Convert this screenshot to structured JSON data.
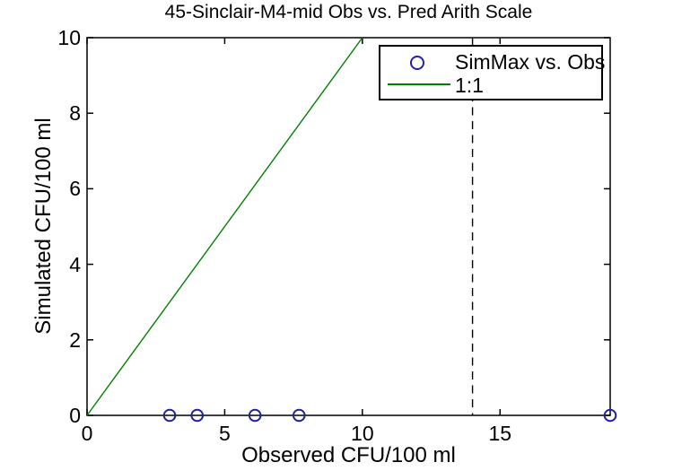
{
  "chart_data": {
    "type": "scatter",
    "title": "45-Sinclair-M4-mid Obs vs. Pred Arith Scale",
    "xlabel": "Observed CFU/100 ml",
    "ylabel": "Simulated CFU/100 ml",
    "xlim": [
      0,
      19
    ],
    "ylim": [
      0,
      10
    ],
    "xticks": [
      0,
      5,
      10,
      15
    ],
    "xtick_labels": [
      "0",
      "5",
      "10",
      "15"
    ],
    "yticks": [
      0,
      2,
      4,
      6,
      8,
      10
    ],
    "ytick_labels": [
      "0",
      "2",
      "4",
      "6",
      "8",
      "10"
    ],
    "grid": false,
    "frame": true,
    "legend_position": "upper-right",
    "series": [
      {
        "name": "SimMax vs. Obs",
        "type": "scatter",
        "marker": "circle",
        "color": "#2121a3",
        "points": [
          [
            3.0,
            0
          ],
          [
            4.0,
            0
          ],
          [
            6.1,
            0
          ],
          [
            7.7,
            0
          ],
          [
            19.0,
            0
          ]
        ]
      },
      {
        "name": "1:1",
        "type": "line",
        "color": "#008000",
        "points": [
          [
            0,
            0
          ],
          [
            10,
            10
          ]
        ]
      }
    ],
    "annotations": [
      {
        "type": "vline",
        "x": 14,
        "line_style": "dashed",
        "color": "#000000"
      }
    ],
    "legend": {
      "entries": [
        {
          "label": "SimMax vs. Obs",
          "marker": "circle",
          "color": "#2121a3"
        },
        {
          "label": "1:1",
          "marker": "line",
          "color": "#008000"
        }
      ]
    }
  },
  "colors": {
    "background": "#ffffff",
    "axis": "#000000",
    "marker_blue": "#2121a3",
    "line_green": "#008000",
    "dashed_black": "#000000"
  }
}
